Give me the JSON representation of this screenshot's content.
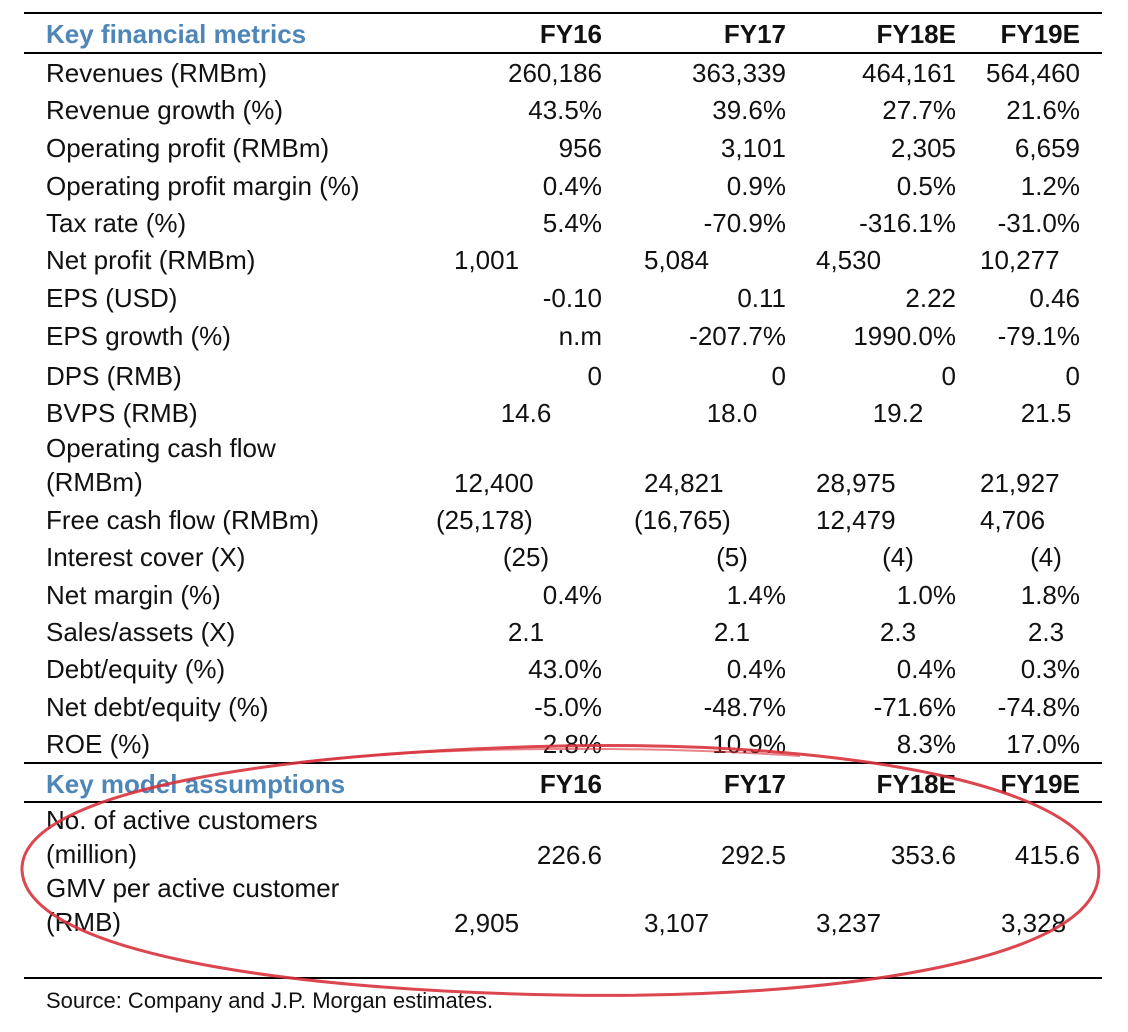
{
  "metrics": {
    "title": "Key financial metrics",
    "columns": [
      "FY16",
      "FY17",
      "FY18E",
      "FY19E"
    ],
    "rows": [
      {
        "label": "Revenues (RMBm)",
        "values": [
          "260,186",
          "363,339",
          "464,161",
          "564,460"
        ]
      },
      {
        "label": "Revenue growth (%)",
        "values": [
          "43.5%",
          "39.6%",
          "27.7%",
          "21.6%"
        ]
      },
      {
        "label": "Operating profit (RMBm)",
        "values": [
          "956",
          "3,101",
          "2,305",
          "6,659"
        ]
      },
      {
        "label": "Operating profit margin (%)",
        "values": [
          "0.4%",
          "0.9%",
          "0.5%",
          "1.2%"
        ]
      },
      {
        "label": "Tax rate (%)",
        "values": [
          "5.4%",
          "-70.9%",
          "-316.1%",
          "-31.0%"
        ]
      },
      {
        "label": "Net profit (RMBm)",
        "values": [
          "1,001",
          "5,084",
          "4,530",
          "10,277"
        ]
      },
      {
        "label": "EPS (USD)",
        "values": [
          "-0.10",
          "0.11",
          "2.22",
          "0.46"
        ]
      },
      {
        "label": "EPS growth (%)",
        "values": [
          "n.m",
          "-207.7%",
          "1990.0%",
          "-79.1%"
        ]
      },
      {
        "label": "DPS (RMB)",
        "values": [
          "0",
          "0",
          "0",
          "0"
        ]
      },
      {
        "label": "BVPS (RMB)",
        "values": [
          "14.6",
          "18.0",
          "19.2",
          "21.5"
        ]
      },
      {
        "label_line1": "Operating cash flow",
        "label_line2": "(RMBm)",
        "values": [
          "12,400",
          "24,821",
          "28,975",
          "21,927"
        ]
      },
      {
        "label": "Free cash flow (RMBm)",
        "values": [
          "(25,178)",
          "(16,765)",
          "12,479",
          "4,706"
        ]
      },
      {
        "label": "Interest cover (X)",
        "values": [
          "(25)",
          "(5)",
          "(4)",
          "(4)"
        ]
      },
      {
        "label": "Net margin (%)",
        "values": [
          "0.4%",
          "1.4%",
          "1.0%",
          "1.8%"
        ]
      },
      {
        "label": "Sales/assets (X)",
        "values": [
          "2.1",
          "2.1",
          "2.3",
          "2.3"
        ]
      },
      {
        "label": "Debt/equity (%)",
        "values": [
          "43.0%",
          "0.4%",
          "0.4%",
          "0.3%"
        ]
      },
      {
        "label": "Net debt/equity (%)",
        "values": [
          "-5.0%",
          "-48.7%",
          "-71.6%",
          "-74.8%"
        ]
      },
      {
        "label": "ROE (%)",
        "values": [
          "2.8%",
          "10.9%",
          "8.3%",
          "17.0%"
        ]
      }
    ]
  },
  "assumptions": {
    "title": "Key model assumptions",
    "columns": [
      "FY16",
      "FY17",
      "FY18E",
      "FY19E"
    ],
    "rows": [
      {
        "label_line1": "No. of active customers",
        "label_line2": "(million)",
        "values": [
          "226.6",
          "292.5",
          "353.6",
          "415.6"
        ]
      },
      {
        "label_line1": "GMV per active customer",
        "label_line2": "(RMB)",
        "values": [
          "2,905",
          "3,107",
          "3,237",
          "3,328"
        ]
      }
    ]
  },
  "source": "Source: Company and J.P. Morgan estimates.",
  "annotation_color": "#d8323c"
}
